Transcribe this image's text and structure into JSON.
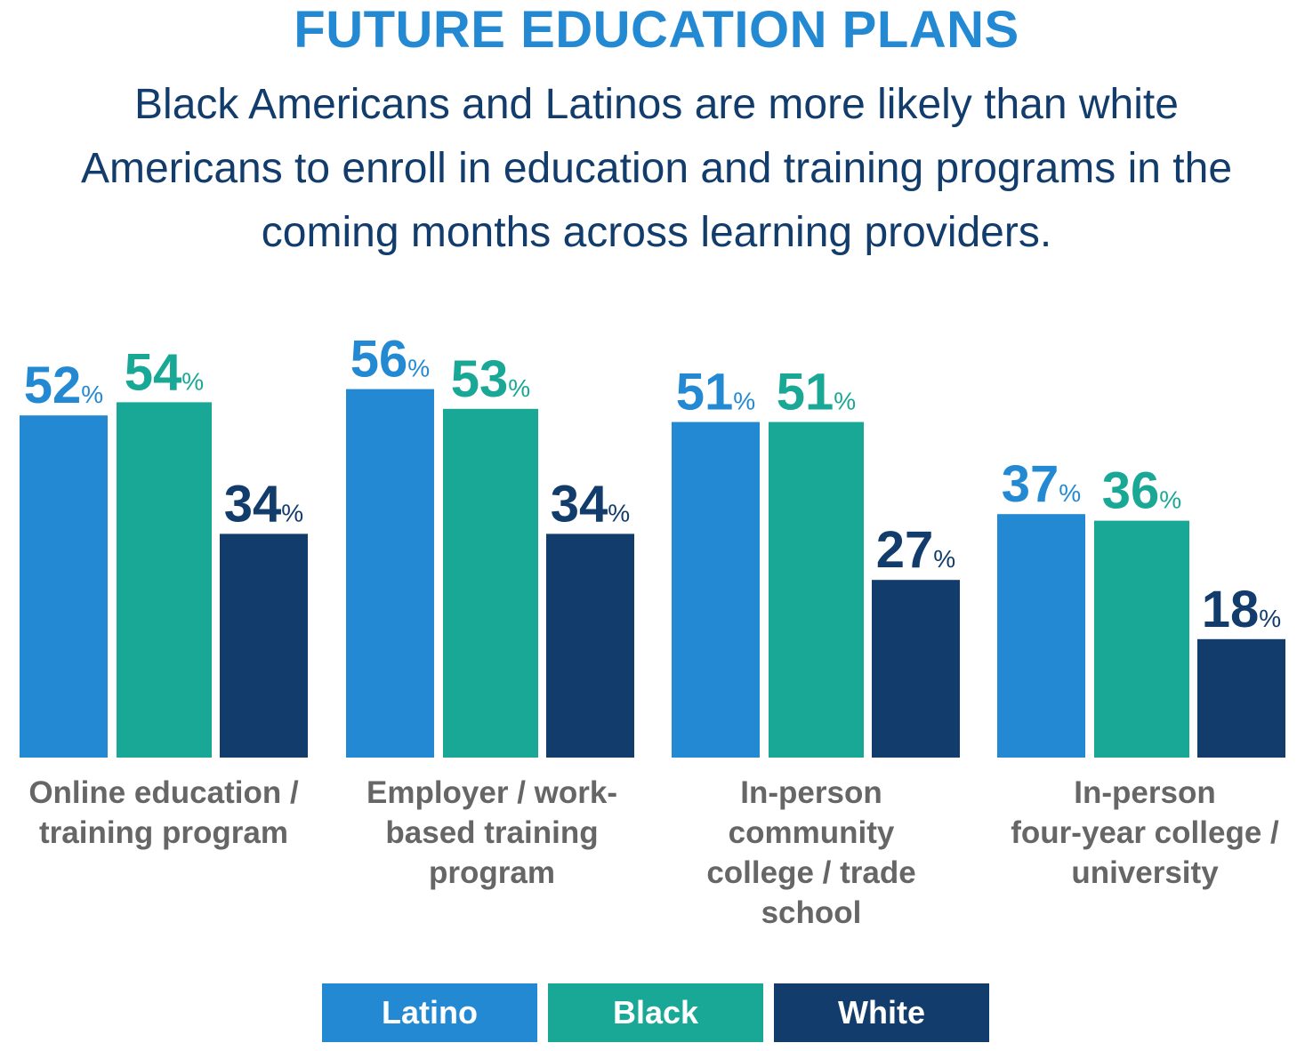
{
  "chart_data": {
    "type": "bar",
    "title": "FUTURE EDUCATION PLANS",
    "subtitle": "Black Americans and Latinos are more likely than white Americans to enroll in education and training programs in the coming months across learning providers.",
    "categories": [
      [
        "Online education /",
        "training program"
      ],
      [
        "Employer / work-",
        "based training",
        "program"
      ],
      [
        "In-person",
        "community",
        "college / trade",
        "school"
      ],
      [
        "In-person",
        "four-year college /",
        "university"
      ]
    ],
    "series": [
      {
        "name": "Latino",
        "values": [
          52,
          56,
          51,
          37
        ],
        "color": "#2389D3"
      },
      {
        "name": "Black",
        "values": [
          54,
          53,
          51,
          36
        ],
        "color": "#19A896"
      },
      {
        "name": "White",
        "values": [
          34,
          34,
          27,
          18
        ],
        "color": "#123C6B"
      }
    ],
    "value_suffix": "%",
    "ylim": [
      0,
      60
    ],
    "grid": false,
    "legend_position": "bottom-center"
  },
  "colors": {
    "title": "#2389D3",
    "subtitle": "#123C6B",
    "category_label": "#666666"
  }
}
